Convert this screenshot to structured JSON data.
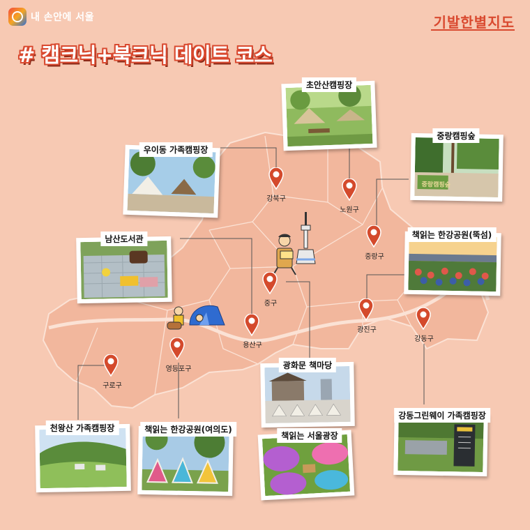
{
  "brand": {
    "text": "내 손안에 서울"
  },
  "corner_title": "기발한별지도",
  "title": "# 캠크닉+북크닉 데이트 코스",
  "districts": {
    "gangbuk": "강북구",
    "nowon": "노원구",
    "jungnang": "중랑구",
    "jung": "중구",
    "gwangjin": "광진구",
    "gangdong": "강동구",
    "yongsan": "용산구",
    "yeongdeungpo": "영등포구",
    "guro": "구로구"
  },
  "places": {
    "choansan": "초안산캠핑장",
    "uidong": "우이동 가족캠핑장",
    "jungnang_camp": "중랑캠핑숲",
    "namsan": "남산도서관",
    "ttukseom": "책읽는 한강공원(뚝섬)",
    "gwanghwamun": "광화문 책마당",
    "gangdong_green": "강동그린웨이 가족캠핑장",
    "cheonwangsan": "천왕산 가족캠핑장",
    "yeouido": "책읽는 한강공원(여의도)",
    "seoul_plaza": "책읽는 서울광장"
  },
  "photo_text": {
    "jungnang_sign": "중랑캠핑숲"
  },
  "colors": {
    "background": "#f7c9b3",
    "map": "#f2b79d",
    "accent": "#d9492f",
    "pin": "#d44a2c"
  }
}
